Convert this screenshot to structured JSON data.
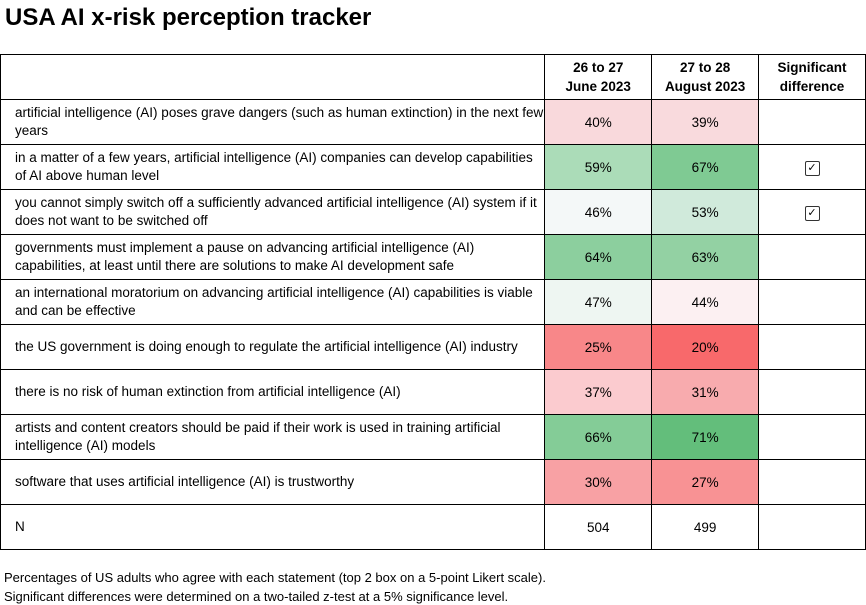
{
  "title": "USA AI x-risk perception tracker",
  "headers": [
    "",
    "26 to 27 June 2023",
    "27 to 28 August 2023",
    "Significant difference"
  ],
  "header_lines": [
    [
      "26 to 27",
      "June 2023"
    ],
    [
      "27 to 28",
      "August 2023"
    ],
    [
      "Significant",
      "difference"
    ]
  ],
  "rows": [
    {
      "statement": "artificial intelligence (AI) poses grave dangers (such as human extinction) in the next few years",
      "june": "40%",
      "august": "39%",
      "june_color": "#f9d9dc",
      "august_color": "#f9dadd",
      "significant": false
    },
    {
      "statement": "in a matter of a few years, artificial intelligence (AI) companies can develop capabilities of AI above human level",
      "june": "59%",
      "august": "67%",
      "june_color": "#abdcb8",
      "august_color": "#7fca93",
      "significant": true
    },
    {
      "statement": "you cannot simply switch off a sufficiently advanced artificial intelligence (AI) system if it does not want to be switched off",
      "june": "46%",
      "august": "53%",
      "june_color": "#f4f8f8",
      "august_color": "#d0eadb",
      "significant": true
    },
    {
      "statement": "governments must implement a pause on advancing artificial intelligence (AI) capabilities, at least until there are solutions to make AI development safe",
      "june": "64%",
      "august": "63%",
      "june_color": "#8ccf9e",
      "august_color": "#93d1a3",
      "significant": false
    },
    {
      "statement": "an international moratorium on advancing artificial intelligence (AI) capabilities is viable and can be effective",
      "june": "47%",
      "august": "44%",
      "june_color": "#eef6f2",
      "august_color": "#fcf0f2",
      "significant": false
    },
    {
      "statement": "the US government is doing enough to regulate the artificial intelligence (AI) industry",
      "june": "25%",
      "august": "20%",
      "june_color": "#f88789",
      "august_color": "#f8696b",
      "significant": false
    },
    {
      "statement": "there is no risk of human extinction from artificial intelligence (AI)",
      "june": "37%",
      "august": "31%",
      "june_color": "#fbcbcf",
      "august_color": "#f8abae",
      "significant": false
    },
    {
      "statement": "artists and content creators should be paid if their work is used in training artificial intelligence (AI) models",
      "june": "66%",
      "august": "71%",
      "june_color": "#84cc97",
      "august_color": "#63be7b",
      "significant": false
    },
    {
      "statement": "software that uses artificial intelligence (AI) is trustworthy",
      "june": "30%",
      "august": "27%",
      "june_color": "#f8a1a4",
      "august_color": "#f89294",
      "significant": false
    }
  ],
  "n_row": {
    "label": "N",
    "june": "504",
    "august": "499"
  },
  "check_icon": "checkbox-checked-icon",
  "footnotes": [
    "Percentages of US adults who agree with each statement (top 2 box on a 5-point Likert scale).",
    "Significant differences were determined on a two-tailed z-test at a 5% significance level."
  ]
}
